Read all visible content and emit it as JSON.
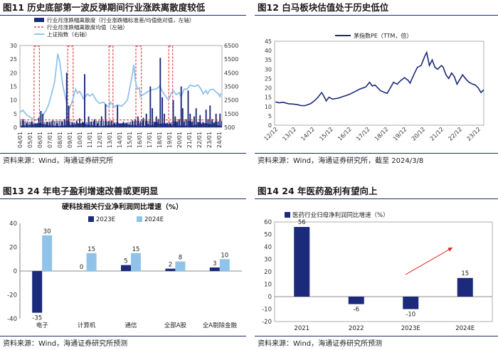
{
  "panels": {
    "p11": {
      "title": "图11 历史底部第一波反弹期间行业涨跌离散度较低",
      "source": "资料来源：Wind，海通证券研究所"
    },
    "p12": {
      "title": "图12 白马板块估值处于历史低位",
      "source": "资料来源：Wind，海通证券研究所，截至 2024/3/8"
    },
    "p13": {
      "title": "图13 24 年电子盈利增速改善或更明显",
      "source": "资料来源：Wind，海通证券研究所预测"
    },
    "p14": {
      "title": "图14 24 年医药盈利有望向上",
      "source": "资料来源：Wind，海通证券研究所预测"
    }
  },
  "colors": {
    "navy": "#1b2a7a",
    "light_blue": "#8fc3ea",
    "red": "#e02020",
    "title_line": "#1c2d6b"
  },
  "chart_data": [
    {
      "id": "fig11",
      "type": "bar",
      "legend": [
        "行业月涨跌幅离散度（行业涨跌幅标准差/均值绝对值，左轴）",
        "行业月涨跌幅离散度均值（左轴）",
        "上证指数（右轴）"
      ],
      "legend_position": "top-right",
      "x_tick_labels": [
        "04/01",
        "05/01",
        "06/01",
        "07/01",
        "08/01",
        "09/01",
        "10/01",
        "11/01",
        "12/01",
        "13/01",
        "14/01",
        "15/01",
        "16/01",
        "17/01",
        "18/01",
        "19/01",
        "20/01",
        "21/01",
        "22/01",
        "23/01",
        "24/01"
      ],
      "y_left": {
        "min": 0,
        "max": 30,
        "ticks": [
          0,
          5,
          10,
          15,
          20,
          25,
          30
        ]
      },
      "y_right": {
        "min": 500,
        "max": 6500,
        "ticks": [
          500,
          1500,
          2500,
          3500,
          4500,
          5500,
          6500
        ]
      },
      "x_range": [
        2004.0,
        2024.3
      ],
      "dispersion_mean": 2.7,
      "highlight_windows": [
        [
          2005.42,
          2005.95
        ],
        [
          2008.8,
          2009.35
        ],
        [
          2012.95,
          2013.35
        ],
        [
          2015.65,
          2016.2
        ],
        [
          2018.95,
          2019.35
        ]
      ],
      "dispersion_spikes": [
        {
          "x": 2004.3,
          "y": 3
        },
        {
          "x": 2004.7,
          "y": 1.5
        },
        {
          "x": 2005.2,
          "y": 2.2
        },
        {
          "x": 2005.6,
          "y": 1.2
        },
        {
          "x": 2005.9,
          "y": 3.5
        },
        {
          "x": 2006.1,
          "y": 6
        },
        {
          "x": 2006.3,
          "y": 5
        },
        {
          "x": 2006.7,
          "y": 2
        },
        {
          "x": 2007.0,
          "y": 1.8
        },
        {
          "x": 2007.3,
          "y": 2.5
        },
        {
          "x": 2007.7,
          "y": 1.5
        },
        {
          "x": 2008.2,
          "y": 2
        },
        {
          "x": 2008.5,
          "y": 3
        },
        {
          "x": 2008.7,
          "y": 20
        },
        {
          "x": 2008.9,
          "y": 8
        },
        {
          "x": 2009.3,
          "y": 1.8
        },
        {
          "x": 2009.7,
          "y": 2.5
        },
        {
          "x": 2010.0,
          "y": 3.3
        },
        {
          "x": 2010.3,
          "y": 2
        },
        {
          "x": 2010.5,
          "y": 19.5
        },
        {
          "x": 2010.9,
          "y": 4
        },
        {
          "x": 2011.2,
          "y": 2
        },
        {
          "x": 2011.5,
          "y": 3
        },
        {
          "x": 2011.8,
          "y": 1.5
        },
        {
          "x": 2012.2,
          "y": 4
        },
        {
          "x": 2012.6,
          "y": 8.5
        },
        {
          "x": 2012.9,
          "y": 2
        },
        {
          "x": 2013.2,
          "y": 2.5
        },
        {
          "x": 2013.5,
          "y": 1.5
        },
        {
          "x": 2013.8,
          "y": 8
        },
        {
          "x": 2014.1,
          "y": 1
        },
        {
          "x": 2014.4,
          "y": 2
        },
        {
          "x": 2014.7,
          "y": 1.5
        },
        {
          "x": 2015.0,
          "y": 0.8
        },
        {
          "x": 2015.3,
          "y": 2.5
        },
        {
          "x": 2015.6,
          "y": 3
        },
        {
          "x": 2015.85,
          "y": 4
        },
        {
          "x": 2016.1,
          "y": 1.5
        },
        {
          "x": 2016.4,
          "y": 3.5
        },
        {
          "x": 2016.7,
          "y": 5
        },
        {
          "x": 2016.9,
          "y": 1.2
        },
        {
          "x": 2017.1,
          "y": 15
        },
        {
          "x": 2017.3,
          "y": 7
        },
        {
          "x": 2017.5,
          "y": 2
        },
        {
          "x": 2017.7,
          "y": 4
        },
        {
          "x": 2017.9,
          "y": 3
        },
        {
          "x": 2018.1,
          "y": 25.5
        },
        {
          "x": 2018.3,
          "y": 11
        },
        {
          "x": 2018.5,
          "y": 5
        },
        {
          "x": 2018.8,
          "y": 1.5
        },
        {
          "x": 2019.1,
          "y": 1.4
        },
        {
          "x": 2019.4,
          "y": 10
        },
        {
          "x": 2019.6,
          "y": 4
        },
        {
          "x": 2019.8,
          "y": 2
        },
        {
          "x": 2020.0,
          "y": 3
        },
        {
          "x": 2020.2,
          "y": 15
        },
        {
          "x": 2020.35,
          "y": 7
        },
        {
          "x": 2020.5,
          "y": 2
        },
        {
          "x": 2020.7,
          "y": 3
        },
        {
          "x": 2020.9,
          "y": 13.5
        },
        {
          "x": 2021.1,
          "y": 5
        },
        {
          "x": 2021.3,
          "y": 2
        },
        {
          "x": 2021.5,
          "y": 4
        },
        {
          "x": 2021.7,
          "y": 7
        },
        {
          "x": 2021.9,
          "y": 2
        },
        {
          "x": 2022.1,
          "y": 4.5
        },
        {
          "x": 2022.4,
          "y": 2
        },
        {
          "x": 2022.7,
          "y": 6.5
        },
        {
          "x": 2022.9,
          "y": 3
        },
        {
          "x": 2023.1,
          "y": 8
        },
        {
          "x": 2023.3,
          "y": 3
        },
        {
          "x": 2023.5,
          "y": 1.5
        },
        {
          "x": 2023.7,
          "y": 5
        },
        {
          "x": 2023.9,
          "y": 2
        },
        {
          "x": 2024.1,
          "y": 5
        }
      ],
      "index_series": [
        [
          2004.0,
          1600
        ],
        [
          2004.3,
          1750
        ],
        [
          2004.7,
          1400
        ],
        [
          2005.0,
          1250
        ],
        [
          2005.4,
          1100
        ],
        [
          2005.6,
          1020
        ],
        [
          2005.9,
          1150
        ],
        [
          2006.3,
          1400
        ],
        [
          2006.6,
          1700
        ],
        [
          2006.9,
          2200
        ],
        [
          2007.2,
          3000
        ],
        [
          2007.5,
          3900
        ],
        [
          2007.8,
          5900
        ],
        [
          2008.0,
          5300
        ],
        [
          2008.3,
          3600
        ],
        [
          2008.6,
          2600
        ],
        [
          2008.85,
          1750
        ],
        [
          2009.0,
          1900
        ],
        [
          2009.3,
          2500
        ],
        [
          2009.6,
          3300
        ],
        [
          2009.8,
          3000
        ],
        [
          2010.0,
          3150
        ],
        [
          2010.4,
          2600
        ],
        [
          2010.8,
          2950
        ],
        [
          2011.0,
          2800
        ],
        [
          2011.3,
          2950
        ],
        [
          2011.7,
          2450
        ],
        [
          2012.0,
          2250
        ],
        [
          2012.4,
          2350
        ],
        [
          2012.7,
          2100
        ],
        [
          2012.95,
          2000
        ],
        [
          2013.1,
          2350
        ],
        [
          2013.5,
          2000
        ],
        [
          2013.8,
          2150
        ],
        [
          2014.2,
          2050
        ],
        [
          2014.5,
          2250
        ],
        [
          2014.8,
          2500
        ],
        [
          2015.0,
          3250
        ],
        [
          2015.3,
          4400
        ],
        [
          2015.45,
          5100
        ],
        [
          2015.6,
          3900
        ],
        [
          2015.8,
          3300
        ],
        [
          2016.0,
          3400
        ],
        [
          2016.1,
          2750
        ],
        [
          2016.4,
          2900
        ],
        [
          2016.8,
          3100
        ],
        [
          2017.2,
          3250
        ],
        [
          2017.6,
          3300
        ],
        [
          2017.9,
          3400
        ],
        [
          2018.05,
          3550
        ],
        [
          2018.3,
          3150
        ],
        [
          2018.6,
          2800
        ],
        [
          2018.95,
          2500
        ],
        [
          2019.2,
          3000
        ],
        [
          2019.4,
          3200
        ],
        [
          2019.7,
          2900
        ],
        [
          2020.0,
          3050
        ],
        [
          2020.2,
          2750
        ],
        [
          2020.5,
          3300
        ],
        [
          2020.8,
          3300
        ],
        [
          2021.1,
          3600
        ],
        [
          2021.5,
          3500
        ],
        [
          2021.9,
          3600
        ],
        [
          2022.2,
          3300
        ],
        [
          2022.4,
          2950
        ],
        [
          2022.7,
          3200
        ],
        [
          2022.85,
          2950
        ],
        [
          2023.1,
          3250
        ],
        [
          2023.4,
          3300
        ],
        [
          2023.7,
          3100
        ],
        [
          2023.95,
          2950
        ],
        [
          2024.1,
          2750
        ],
        [
          2024.2,
          3000
        ]
      ]
    },
    {
      "id": "fig12",
      "type": "line",
      "series_name": "茅指数PE（TTM，倍）",
      "legend_position": "top-center",
      "x_tick_labels": [
        "12/12",
        "13/12",
        "14/12",
        "15/12",
        "16/12",
        "17/12",
        "18/12",
        "19/12",
        "20/12",
        "21/12",
        "22/12",
        "23/12"
      ],
      "x_range": [
        2012.85,
        2024.2
      ],
      "ylim": [
        0,
        45
      ],
      "y_ticks": [
        0,
        5,
        10,
        15,
        20,
        25,
        30,
        35,
        40,
        45
      ],
      "points": [
        [
          2012.9,
          12.5
        ],
        [
          2013.1,
          12
        ],
        [
          2013.3,
          12.3
        ],
        [
          2013.6,
          11.5
        ],
        [
          2013.9,
          11.3
        ],
        [
          2014.1,
          11
        ],
        [
          2014.3,
          10.5
        ],
        [
          2014.5,
          10.5
        ],
        [
          2014.8,
          11.5
        ],
        [
          2015.0,
          13
        ],
        [
          2015.2,
          15
        ],
        [
          2015.4,
          17.5
        ],
        [
          2015.5,
          16
        ],
        [
          2015.65,
          13
        ],
        [
          2015.8,
          15
        ],
        [
          2016.0,
          14
        ],
        [
          2016.3,
          14.5
        ],
        [
          2016.6,
          15.5
        ],
        [
          2016.9,
          16.5
        ],
        [
          2017.2,
          18
        ],
        [
          2017.5,
          19.5
        ],
        [
          2017.8,
          20.5
        ],
        [
          2018.0,
          23
        ],
        [
          2018.15,
          21
        ],
        [
          2018.3,
          21.5
        ],
        [
          2018.6,
          18.5
        ],
        [
          2018.95,
          17
        ],
        [
          2019.1,
          19.5
        ],
        [
          2019.3,
          23
        ],
        [
          2019.5,
          22
        ],
        [
          2019.7,
          24
        ],
        [
          2019.9,
          25.5
        ],
        [
          2020.1,
          24
        ],
        [
          2020.2,
          22.5
        ],
        [
          2020.4,
          27
        ],
        [
          2020.6,
          31
        ],
        [
          2020.8,
          32
        ],
        [
          2021.0,
          37
        ],
        [
          2021.1,
          39
        ],
        [
          2021.25,
          32
        ],
        [
          2021.4,
          35
        ],
        [
          2021.55,
          31
        ],
        [
          2021.7,
          30
        ],
        [
          2021.9,
          32
        ],
        [
          2022.0,
          31
        ],
        [
          2022.15,
          27
        ],
        [
          2022.3,
          25
        ],
        [
          2022.45,
          28
        ],
        [
          2022.6,
          26
        ],
        [
          2022.75,
          22
        ],
        [
          2022.9,
          24.5
        ],
        [
          2023.05,
          27
        ],
        [
          2023.25,
          24.5
        ],
        [
          2023.4,
          23
        ],
        [
          2023.6,
          22
        ],
        [
          2023.75,
          21.5
        ],
        [
          2023.9,
          20
        ],
        [
          2024.05,
          17.5
        ],
        [
          2024.2,
          19
        ]
      ]
    },
    {
      "id": "fig13",
      "type": "bar",
      "title": "硬科技相关行业净利润同比增速（%）",
      "categories": [
        "电子",
        "计算机",
        "通信",
        "全部A股",
        "全A剔除金融"
      ],
      "series": [
        {
          "name": "2023E",
          "values": [
            -35,
            0,
            5,
            2,
            3
          ]
        },
        {
          "name": "2024E",
          "values": [
            30,
            15,
            15,
            8,
            10
          ]
        }
      ],
      "legend_position": "top-center",
      "ylim": [
        -40,
        40
      ],
      "y_ticks": [
        -40,
        -20,
        0,
        20,
        40
      ]
    },
    {
      "id": "fig14",
      "type": "bar",
      "series_name": "医药行业归母净利润同比增速（%）",
      "categories": [
        "2021",
        "2022",
        "2023E",
        "2024E"
      ],
      "values": [
        56,
        -6,
        -10,
        15
      ],
      "legend_position": "top-left",
      "ylim": [
        -20,
        60
      ],
      "y_ticks": [
        -20,
        -10,
        0,
        10,
        20,
        30,
        40,
        50,
        60
      ],
      "annotation": "upward-trend-arrow"
    }
  ]
}
